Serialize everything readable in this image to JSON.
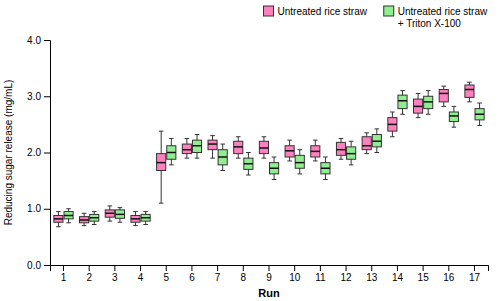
{
  "chart_data": {
    "type": "box",
    "xlabel": "Run",
    "ylabel": "Reducing sugar release (mg/mL)",
    "categories": [
      "1",
      "2",
      "3",
      "4",
      "5",
      "6",
      "7",
      "8",
      "9",
      "10",
      "11",
      "12",
      "13",
      "14",
      "15",
      "16",
      "17"
    ],
    "series": [
      {
        "name": "Untreated rice straw",
        "color": "#FF80C0",
        "medians": [
          0.82,
          0.8,
          0.92,
          0.82,
          1.82,
          2.05,
          2.15,
          2.1,
          2.08,
          2.03,
          2.02,
          2.05,
          2.12,
          2.5,
          2.82,
          3.05,
          3.12
        ],
        "q1": [
          0.76,
          0.75,
          0.85,
          0.76,
          1.68,
          1.98,
          2.05,
          1.98,
          1.98,
          1.92,
          1.92,
          1.95,
          2.05,
          2.38,
          2.7,
          2.9,
          2.98
        ],
        "q3": [
          0.88,
          0.86,
          0.98,
          0.88,
          1.98,
          2.15,
          2.22,
          2.2,
          2.2,
          2.12,
          2.12,
          2.18,
          2.28,
          2.62,
          2.95,
          3.12,
          3.2
        ],
        "whisker_low": [
          0.68,
          0.7,
          0.78,
          0.7,
          1.1,
          1.9,
          1.9,
          1.9,
          1.9,
          1.85,
          1.85,
          1.88,
          1.98,
          2.28,
          2.62,
          2.82,
          2.9
        ],
        "whisker_high": [
          0.95,
          0.92,
          1.05,
          0.95,
          2.38,
          2.25,
          2.3,
          2.28,
          2.28,
          2.22,
          2.22,
          2.25,
          2.35,
          2.72,
          3.05,
          3.18,
          3.25
        ]
      },
      {
        "name": "Untreated rice straw\n+ Triton X-100",
        "color": "#90EE90",
        "medians": [
          0.88,
          0.84,
          0.9,
          0.84,
          2.0,
          2.12,
          1.92,
          1.8,
          1.72,
          1.82,
          1.72,
          1.98,
          2.2,
          2.92,
          2.9,
          2.65,
          2.68
        ],
        "q1": [
          0.82,
          0.78,
          0.83,
          0.78,
          1.88,
          2.0,
          1.78,
          1.7,
          1.62,
          1.72,
          1.62,
          1.88,
          2.1,
          2.78,
          2.78,
          2.55,
          2.58
        ],
        "q3": [
          0.95,
          0.9,
          0.98,
          0.9,
          2.12,
          2.22,
          2.05,
          1.9,
          1.82,
          1.95,
          1.82,
          2.1,
          2.32,
          3.02,
          3.0,
          2.72,
          2.78
        ],
        "whisker_low": [
          0.75,
          0.72,
          0.76,
          0.72,
          1.78,
          1.9,
          1.68,
          1.6,
          1.52,
          1.62,
          1.52,
          1.78,
          2.0,
          2.68,
          2.68,
          2.45,
          2.48
        ],
        "whisker_high": [
          1.0,
          0.95,
          1.02,
          0.95,
          2.25,
          2.32,
          2.15,
          2.0,
          1.92,
          2.05,
          1.92,
          2.2,
          2.42,
          3.1,
          3.1,
          2.82,
          2.88
        ]
      }
    ],
    "ylim": [
      0.0,
      4.0
    ],
    "yticks": [
      {
        "value": 0.0,
        "label": "0.0"
      },
      {
        "value": 1.0,
        "label": "1.0"
      },
      {
        "value": 2.0,
        "label": "2.0"
      },
      {
        "value": 3.0,
        "label": "3.0"
      },
      {
        "value": 4.0,
        "label": "4.0"
      }
    ],
    "legend": "upper right",
    "grid": false
  }
}
